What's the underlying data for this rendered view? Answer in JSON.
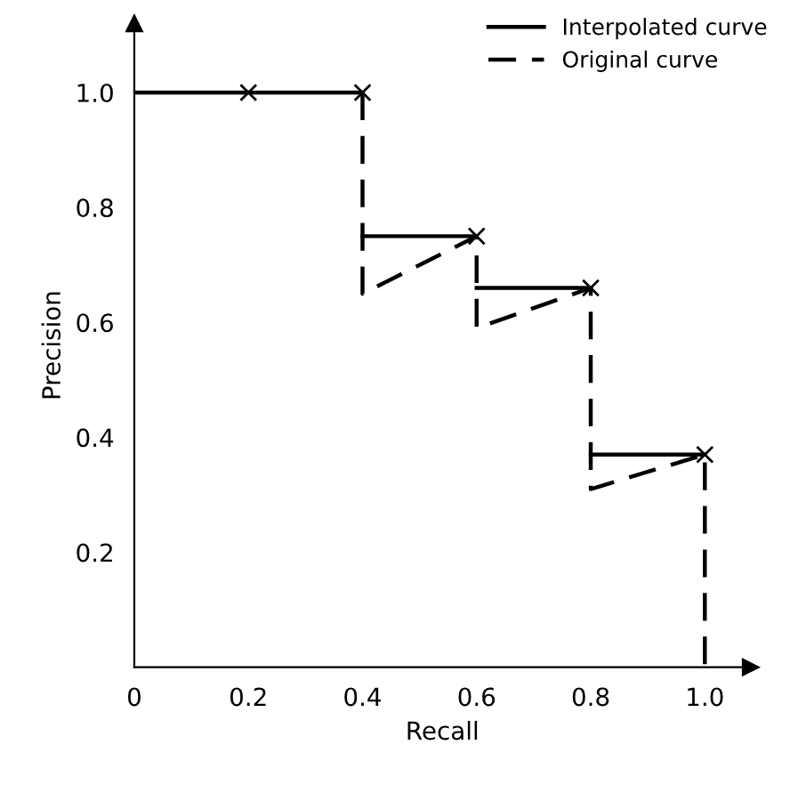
{
  "chart_data": {
    "type": "line",
    "xlabel": "Recall",
    "ylabel": "Precision",
    "xlim": [
      0,
      1.08
    ],
    "ylim": [
      0,
      1.12
    ],
    "xticks": [
      {
        "value": 0,
        "label": "0"
      },
      {
        "value": 0.2,
        "label": "0.2"
      },
      {
        "value": 0.4,
        "label": "0.4"
      },
      {
        "value": 0.6,
        "label": "0.6"
      },
      {
        "value": 0.8,
        "label": "0.8"
      },
      {
        "value": 1.0,
        "label": "1.0"
      }
    ],
    "yticks": [
      {
        "value": 0.2,
        "label": "0.2"
      },
      {
        "value": 0.4,
        "label": "0.4"
      },
      {
        "value": 0.6,
        "label": "0.6"
      },
      {
        "value": 0.8,
        "label": "0.8"
      },
      {
        "value": 1.0,
        "label": "1.0"
      }
    ],
    "grid": false,
    "legend": "top right",
    "series": [
      {
        "name": "Interpolated curve",
        "color": "#000000",
        "line_style": "solid",
        "x": [
          0,
          0.4,
          null,
          0.4,
          0.6,
          null,
          0.6,
          0.8,
          null,
          0.8,
          1.0
        ],
        "values": [
          1.0,
          1.0,
          null,
          0.75,
          0.75,
          null,
          0.66,
          0.66,
          null,
          0.37,
          0.37
        ]
      },
      {
        "name": "Original curve",
        "color": "#000000",
        "line_style": "dashed",
        "x": [
          0.4,
          0.4,
          0.6,
          0.6,
          0.6,
          0.8,
          0.8,
          0.8,
          1.0,
          1.0
        ],
        "values": [
          1.0,
          0.65,
          0.75,
          0.75,
          0.59,
          0.66,
          0.66,
          0.31,
          0.37,
          0.0
        ]
      },
      {
        "type": "scatter",
        "marker": "cross",
        "color": "#000000",
        "x": [
          0.2,
          0.4,
          0.6,
          0.8,
          1.0
        ],
        "values": [
          1.0,
          1.0,
          0.75,
          0.66,
          0.37
        ]
      }
    ]
  }
}
